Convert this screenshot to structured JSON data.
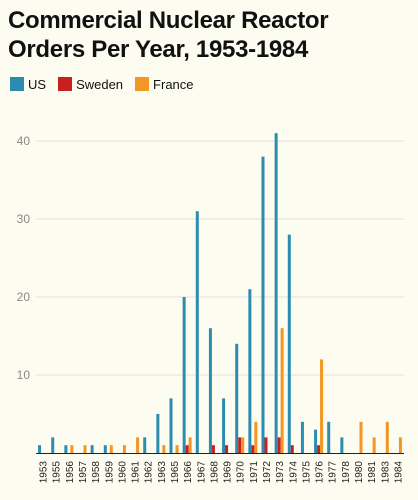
{
  "chart_data": {
    "type": "bar",
    "title": "Commercial Nuclear Reactor Orders Per Year, 1953-1984",
    "xlabel": "",
    "ylabel": "",
    "ylim": [
      0,
      45
    ],
    "yticks": [
      10,
      20,
      30,
      40
    ],
    "grid": true,
    "legend_position": "top-left",
    "categories": [
      "1953",
      "1955",
      "1956",
      "1957",
      "1958",
      "1959",
      "1960",
      "1961",
      "1962",
      "1963",
      "1965",
      "1966",
      "1967",
      "1968",
      "1969",
      "1970",
      "1971",
      "1972",
      "1973",
      "1974",
      "1975",
      "1976",
      "1977",
      "1978",
      "1980",
      "1981",
      "1983",
      "1984"
    ],
    "series": [
      {
        "name": "US",
        "color": "#2b8cb0",
        "values": [
          1,
          2,
          1,
          0,
          1,
          1,
          0,
          0,
          2,
          5,
          7,
          20,
          31,
          16,
          7,
          14,
          21,
          38,
          41,
          28,
          4,
          3,
          4,
          2,
          0,
          0,
          0,
          0
        ]
      },
      {
        "name": "Sweden",
        "color": "#c62020",
        "values": [
          0,
          0,
          0,
          0,
          0,
          0,
          0,
          0,
          0,
          0,
          0,
          1,
          0,
          1,
          1,
          2,
          1,
          2,
          2,
          1,
          0,
          1,
          0,
          0,
          0,
          0,
          0,
          0
        ]
      },
      {
        "name": "France",
        "color": "#f29624",
        "values": [
          0,
          0,
          1,
          1,
          0,
          1,
          1,
          2,
          0,
          1,
          1,
          2,
          0,
          0,
          0,
          2,
          4,
          0,
          16,
          0,
          0,
          12,
          0,
          0,
          4,
          2,
          4,
          2
        ]
      }
    ]
  }
}
